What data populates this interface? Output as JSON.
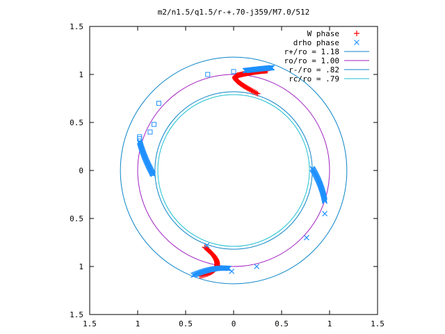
{
  "chart_data": {
    "type": "scatter",
    "title": "m2/n1.5/q1.5/r-+.70-j359/M7.0/512",
    "xlabel": "",
    "ylabel": "",
    "xlim": [
      -1.5,
      1.5
    ],
    "ylim": [
      -1.5,
      1.5
    ],
    "x_ticks": [
      -1.5,
      -1,
      -0.5,
      0,
      0.5,
      1,
      1.5
    ],
    "y_ticks": [
      -1.5,
      -1,
      -0.5,
      0,
      0.5,
      1,
      1.5
    ],
    "x_tick_labels": [
      "1.5",
      "1",
      "0.5",
      "0",
      "0.5",
      "1",
      "1.5"
    ],
    "y_tick_labels": [
      "1.5",
      "1",
      "0.5",
      "0",
      "0.5",
      "1",
      "1.5"
    ],
    "grid": false,
    "legend_position": "top-right",
    "circles": [
      {
        "name": "r+/ro = 1.18",
        "radius": 1.18,
        "color": "#0a84c8"
      },
      {
        "name": "ro/ro = 1.00",
        "radius": 1.0,
        "color": "#a020c0"
      },
      {
        "name": "r-/ro = .82",
        "radius": 0.82,
        "color": "#0a84c8"
      },
      {
        "name": "rc/ro = .79",
        "radius": 0.79,
        "color": "#20c0d0"
      }
    ],
    "series": [
      {
        "name": "W phase",
        "marker": "plus",
        "color": "#ff0000",
        "arcs": [
          {
            "p0": [
              0.04,
              0.99
            ],
            "p1": [
              -0.06,
              0.96
            ],
            "p2": [
              0.25,
              0.8
            ]
          },
          {
            "p0": [
              0.04,
              0.99
            ],
            "p1": [
              0.2,
              1.03
            ],
            "p2": [
              0.35,
              1.04
            ]
          },
          {
            "p0": [
              -0.3,
              -0.8
            ],
            "p1": [
              -0.02,
              -1.02
            ],
            "p2": [
              -0.35,
              -1.1
            ]
          }
        ],
        "points_per_arc": 45
      },
      {
        "name": "drho phase",
        "marker": "cross",
        "color": "#1e90ff",
        "arcs": [
          {
            "p0": [
              0.12,
              1.04
            ],
            "p1": [
              0.28,
              1.06
            ],
            "p2": [
              0.4,
              1.07
            ]
          },
          {
            "p0": [
              -0.98,
              0.3
            ],
            "p1": [
              -0.93,
              0.12
            ],
            "p2": [
              -0.84,
              -0.04
            ]
          },
          {
            "p0": [
              0.82,
              0.02
            ],
            "p1": [
              0.92,
              -0.15
            ],
            "p2": [
              0.95,
              -0.32
            ]
          },
          {
            "p0": [
              -0.05,
              -1.02
            ],
            "p1": [
              -0.2,
              -1.0
            ],
            "p2": [
              -0.42,
              -1.09
            ]
          }
        ],
        "points_per_arc": 40,
        "extra_points": [
          [
            0.95,
            -0.45
          ],
          [
            0.76,
            -0.7
          ],
          [
            0.24,
            -1.0
          ],
          [
            -0.28,
            -0.78
          ],
          [
            -0.02,
            -1.05
          ]
        ],
        "square_points": [
          [
            0.0,
            1.03
          ],
          [
            -0.27,
            1.0
          ],
          [
            -0.78,
            0.7
          ],
          [
            -0.83,
            0.48
          ],
          [
            -0.87,
            0.4
          ],
          [
            -0.98,
            0.33
          ],
          [
            -0.98,
            0.35
          ],
          [
            -0.85,
            -0.03
          ]
        ]
      }
    ]
  }
}
